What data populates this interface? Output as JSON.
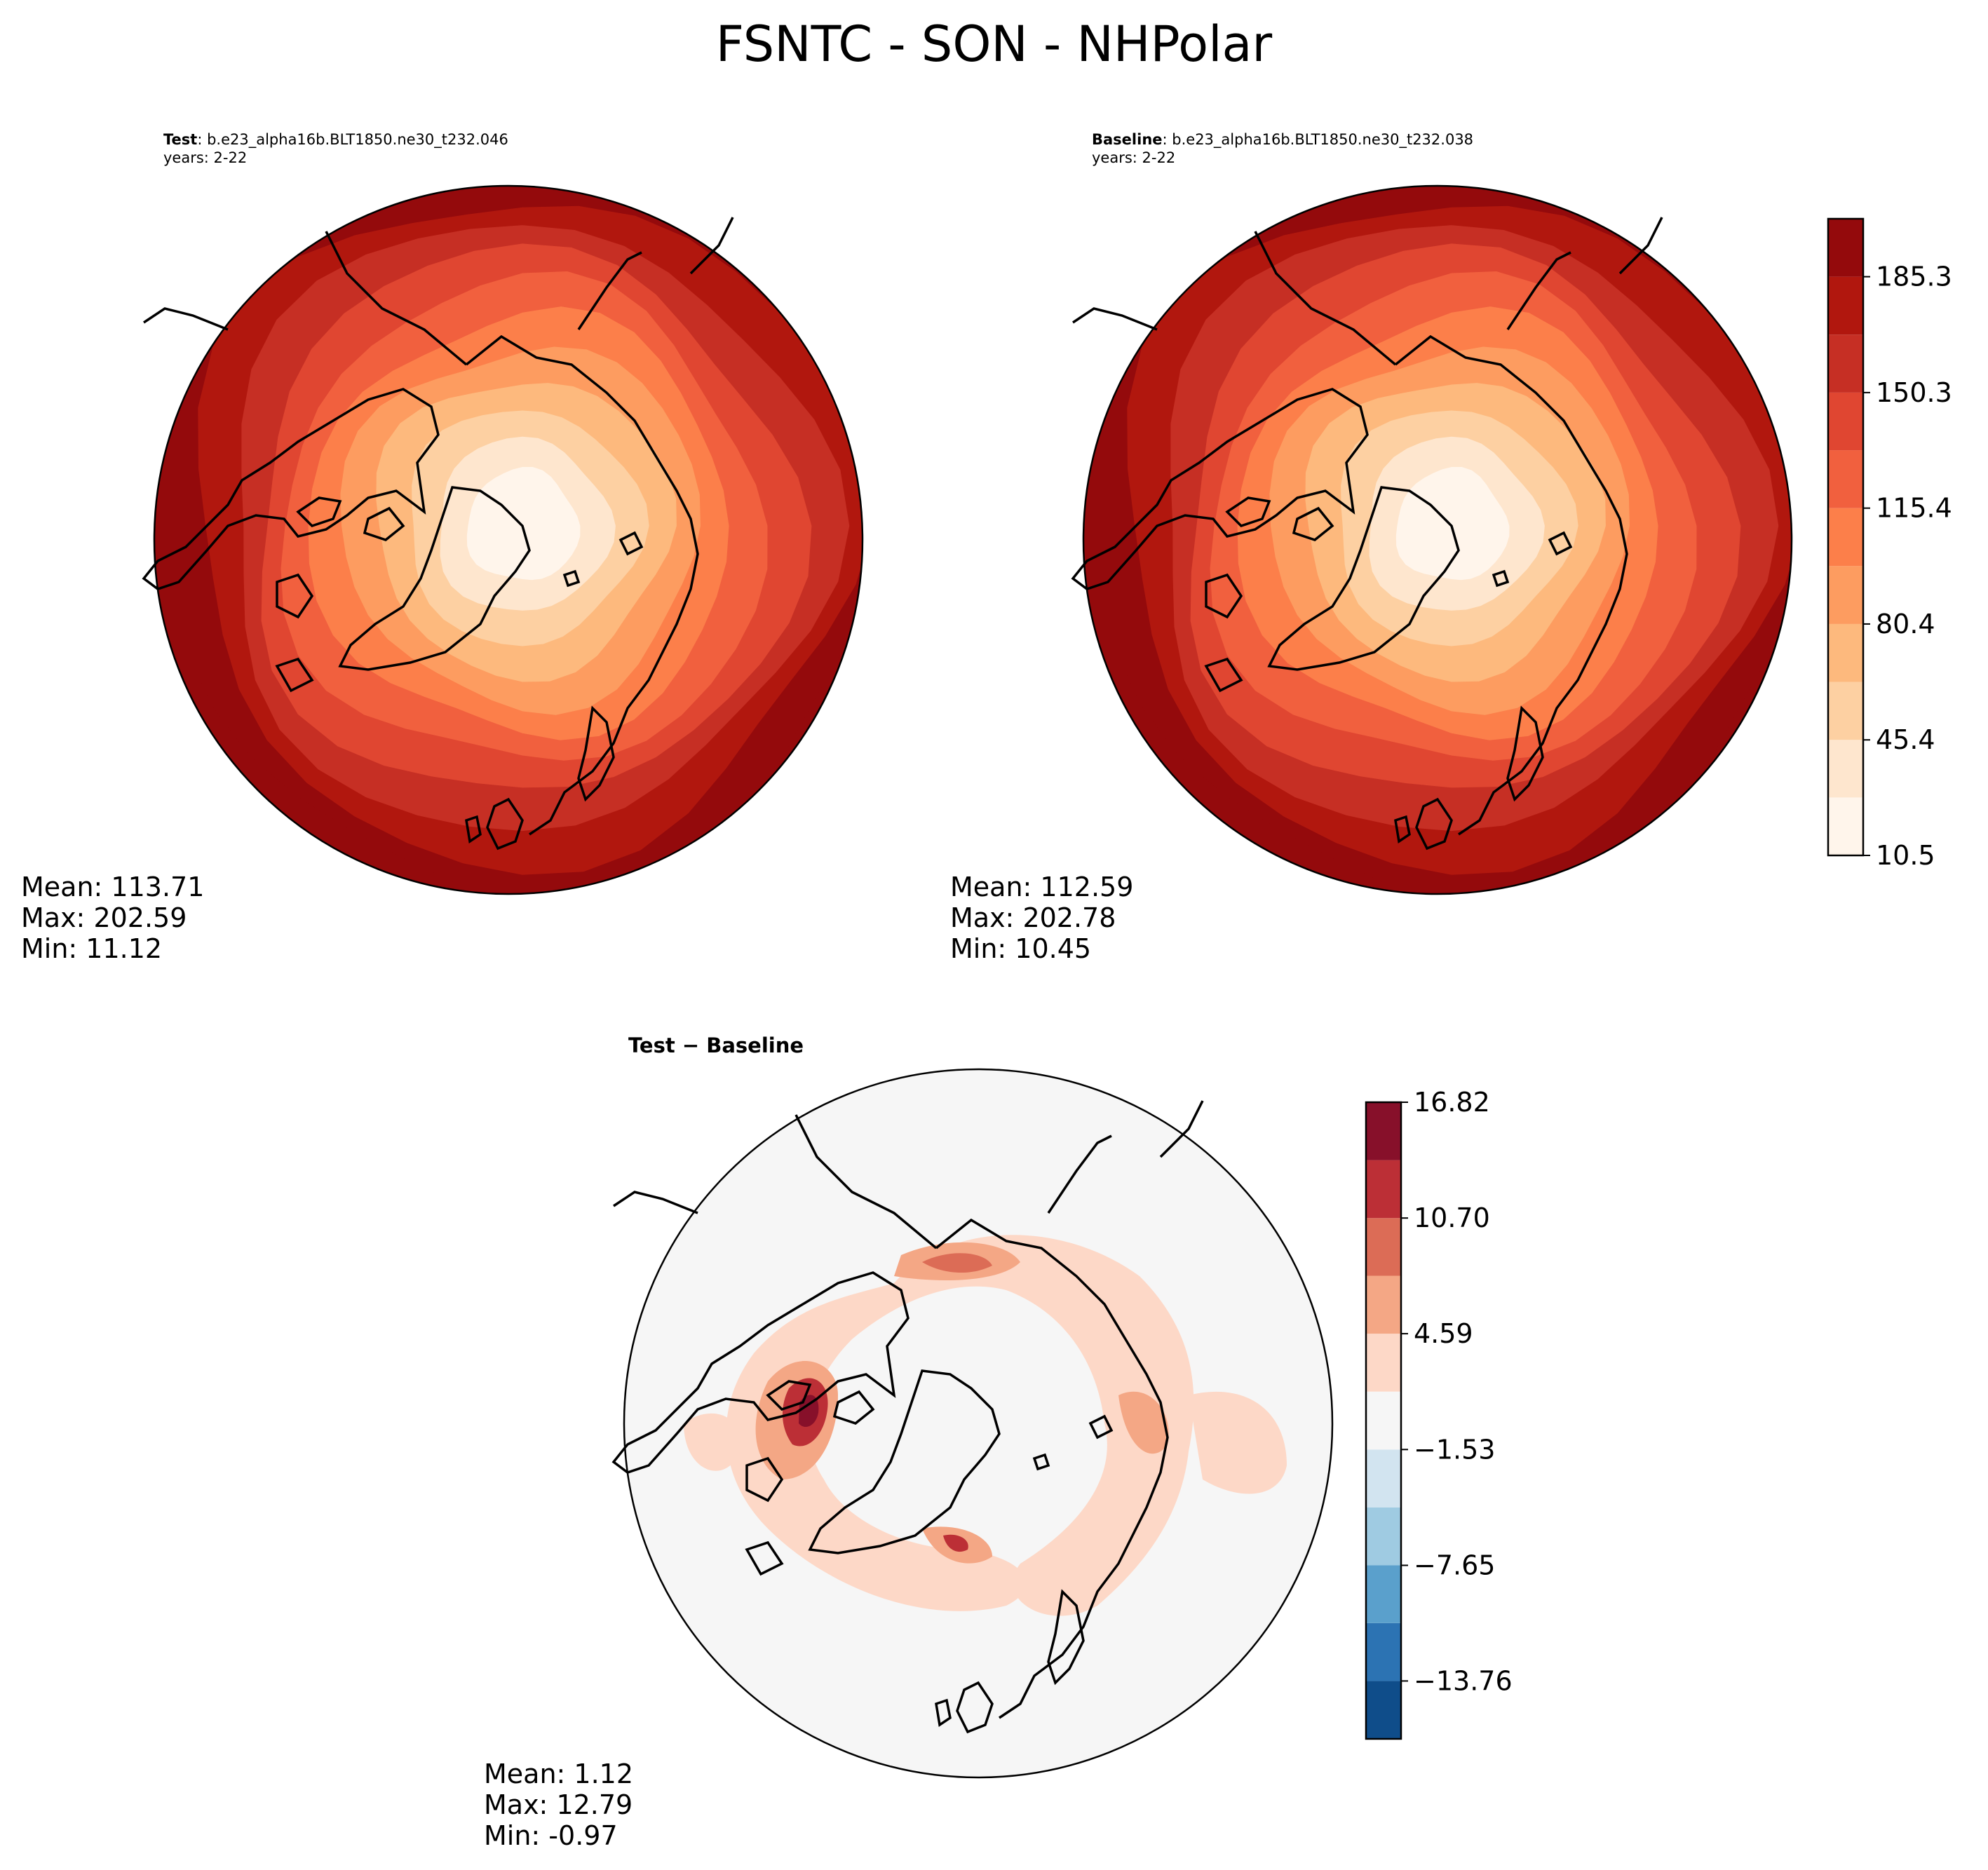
{
  "figure": {
    "title": "FSNTC - SON - NHPolar"
  },
  "panels": {
    "test": {
      "label": "Test",
      "case": ": b.e23_alpha16b.BLT1850.ne30_t232.046",
      "years": "years: 2-22",
      "mean": "Mean: 113.71",
      "max": "Max: 202.59",
      "min": "Min: 11.12"
    },
    "baseline": {
      "label": "Baseline",
      "case": ": b.e23_alpha16b.BLT1850.ne30_t232.038",
      "years": "years: 2-22",
      "mean": "Mean: 112.59",
      "max": "Max: 202.78",
      "min": "Min: 10.45"
    },
    "diff": {
      "title": "Test − Baseline",
      "mean": "Mean:  1.12",
      "max": "Max: 12.79",
      "min": "Min: -0.97"
    }
  },
  "chart_data": [
    {
      "type": "heatmap",
      "name": "Test",
      "projection": "north-polar-stereographic",
      "field_range": [
        11.12,
        202.59
      ],
      "mean": 113.71
    },
    {
      "type": "heatmap",
      "name": "Baseline",
      "projection": "north-polar-stereographic",
      "field_range": [
        10.45,
        202.78
      ],
      "mean": 112.59
    },
    {
      "type": "heatmap",
      "name": "Test − Baseline",
      "projection": "north-polar-stereographic",
      "field_range": [
        -0.97,
        12.79
      ],
      "mean": 1.12
    },
    {
      "type": "colorbar",
      "name": "main-colorbar",
      "range": [
        10.5,
        202.5
      ],
      "levels": [
        10.5,
        28.0,
        45.4,
        62.9,
        80.4,
        97.9,
        115.4,
        132.9,
        150.3,
        167.8,
        185.3,
        202.8
      ],
      "ticks": [
        10.5,
        45.4,
        80.4,
        115.4,
        150.3,
        185.3
      ],
      "tick_labels": [
        "10.5",
        "45.4",
        "80.4",
        "115.4",
        "150.3",
        "185.3"
      ],
      "colors": [
        "#fff5eb",
        "#fee6ce",
        "#fdd0a2",
        "#fdb97d",
        "#fd9c60",
        "#fc7f4a",
        "#f1603e",
        "#e04631",
        "#c62f24",
        "#b1170e",
        "#940a0c"
      ]
    },
    {
      "type": "colorbar",
      "name": "diff-colorbar",
      "range": [
        -16.82,
        16.82
      ],
      "levels": [
        -16.82,
        -13.76,
        -10.7,
        -7.65,
        -4.59,
        -1.53,
        1.53,
        4.59,
        7.65,
        10.7,
        13.76,
        16.82
      ],
      "ticks": [
        -13.76,
        -7.65,
        -1.53,
        4.59,
        10.7,
        16.82
      ],
      "tick_labels": [
        "−13.76",
        "−7.65",
        "−1.53",
        "4.59",
        "10.70",
        "16.82"
      ],
      "colors": [
        "#0f4d8a",
        "#2c73b3",
        "#5aa0cc",
        "#9fcbe2",
        "#d2e4f0",
        "#f6f6f6",
        "#fdd8c7",
        "#f4a785",
        "#dc6c56",
        "#bc2f36",
        "#87102a"
      ]
    }
  ]
}
